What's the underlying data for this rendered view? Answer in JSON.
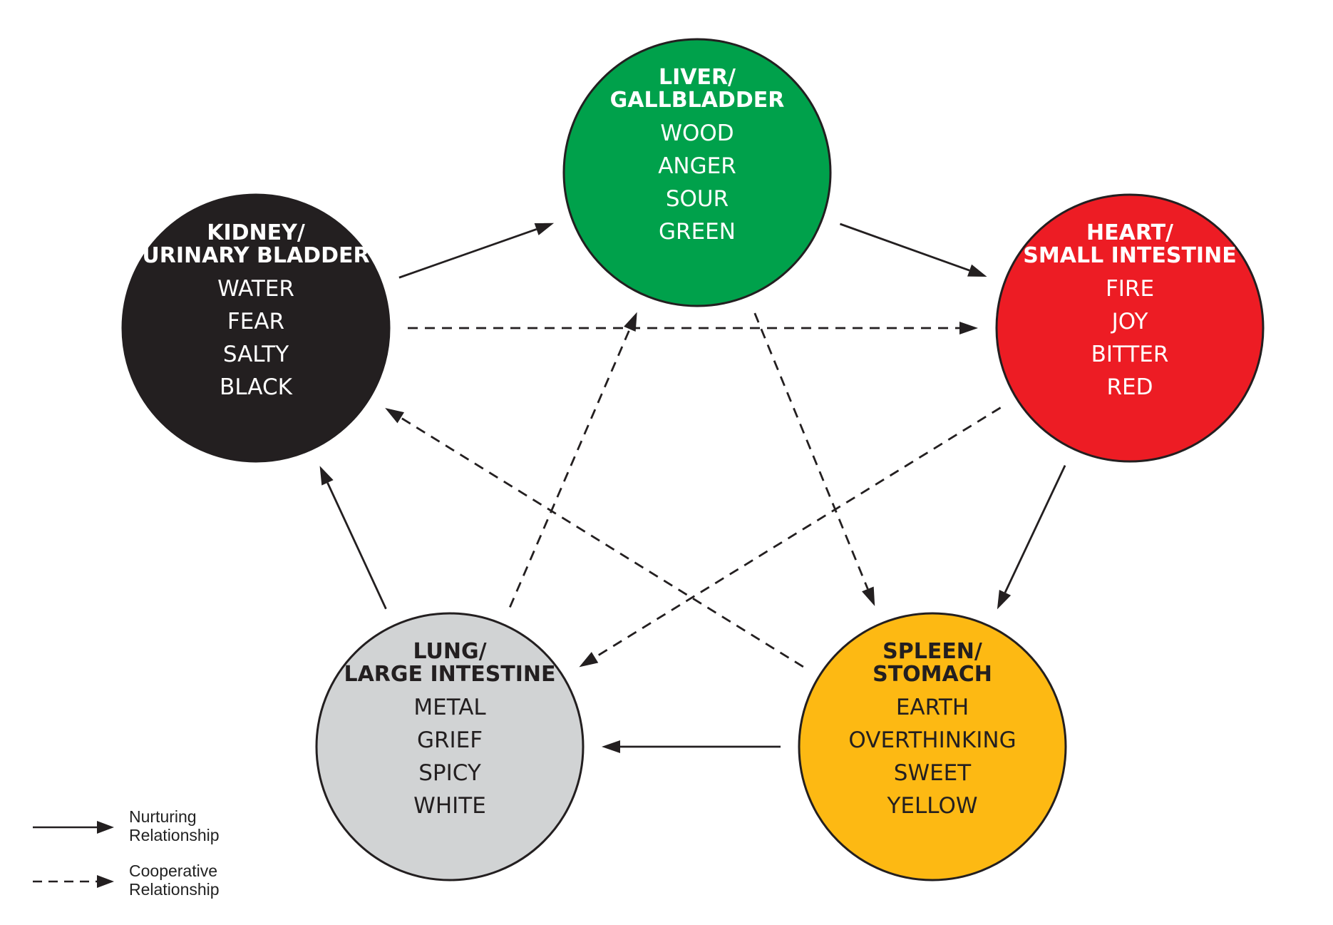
{
  "nodes": [
    {
      "id": "liver",
      "title": [
        "LIVER/",
        "GALLBLADDER"
      ],
      "attributes": [
        "WOOD",
        "ANGER",
        "SOUR",
        "GREEN"
      ],
      "fill": "#00a14b",
      "text_color": "#ffffff"
    },
    {
      "id": "heart",
      "title": [
        "HEART/",
        "SMALL INTESTINE"
      ],
      "attributes": [
        "FIRE",
        "JOY",
        "BITTER",
        "RED"
      ],
      "fill": "#ed1c24",
      "text_color": "#ffffff"
    },
    {
      "id": "spleen",
      "title": [
        "SPLEEN/",
        "STOMACH"
      ],
      "attributes": [
        "EARTH",
        "OVERTHINKING",
        "SWEET",
        "YELLOW"
      ],
      "fill": "#fdb913",
      "text_color": "#231f20"
    },
    {
      "id": "lung",
      "title": [
        "LUNG/",
        "LARGE INTESTINE"
      ],
      "attributes": [
        "METAL",
        "GRIEF",
        "SPICY",
        "WHITE"
      ],
      "fill": "#d1d3d4",
      "text_color": "#231f20"
    },
    {
      "id": "kidney",
      "title": [
        "KIDNEY/",
        "URINARY BLADDER"
      ],
      "attributes": [
        "WATER",
        "FEAR",
        "SALTY",
        "BLACK"
      ],
      "fill": "#231f20",
      "text_color": "#ffffff"
    }
  ],
  "relationships": {
    "nurturing": [
      {
        "from": "kidney",
        "to": "liver"
      },
      {
        "from": "liver",
        "to": "heart"
      },
      {
        "from": "heart",
        "to": "spleen"
      },
      {
        "from": "spleen",
        "to": "lung"
      },
      {
        "from": "lung",
        "to": "kidney"
      }
    ],
    "cooperative": [
      {
        "from": "kidney",
        "to": "heart"
      },
      {
        "from": "heart",
        "to": "lung"
      },
      {
        "from": "lung",
        "to": "liver"
      },
      {
        "from": "liver",
        "to": "spleen"
      },
      {
        "from": "spleen",
        "to": "kidney"
      }
    ]
  },
  "legend": {
    "nurturing": [
      "Nurturing",
      "Relationship"
    ],
    "cooperative": [
      "Cooperative",
      "Relationship"
    ]
  },
  "colors": {
    "arrow": "#231f20",
    "node_outline": "#231f20"
  }
}
